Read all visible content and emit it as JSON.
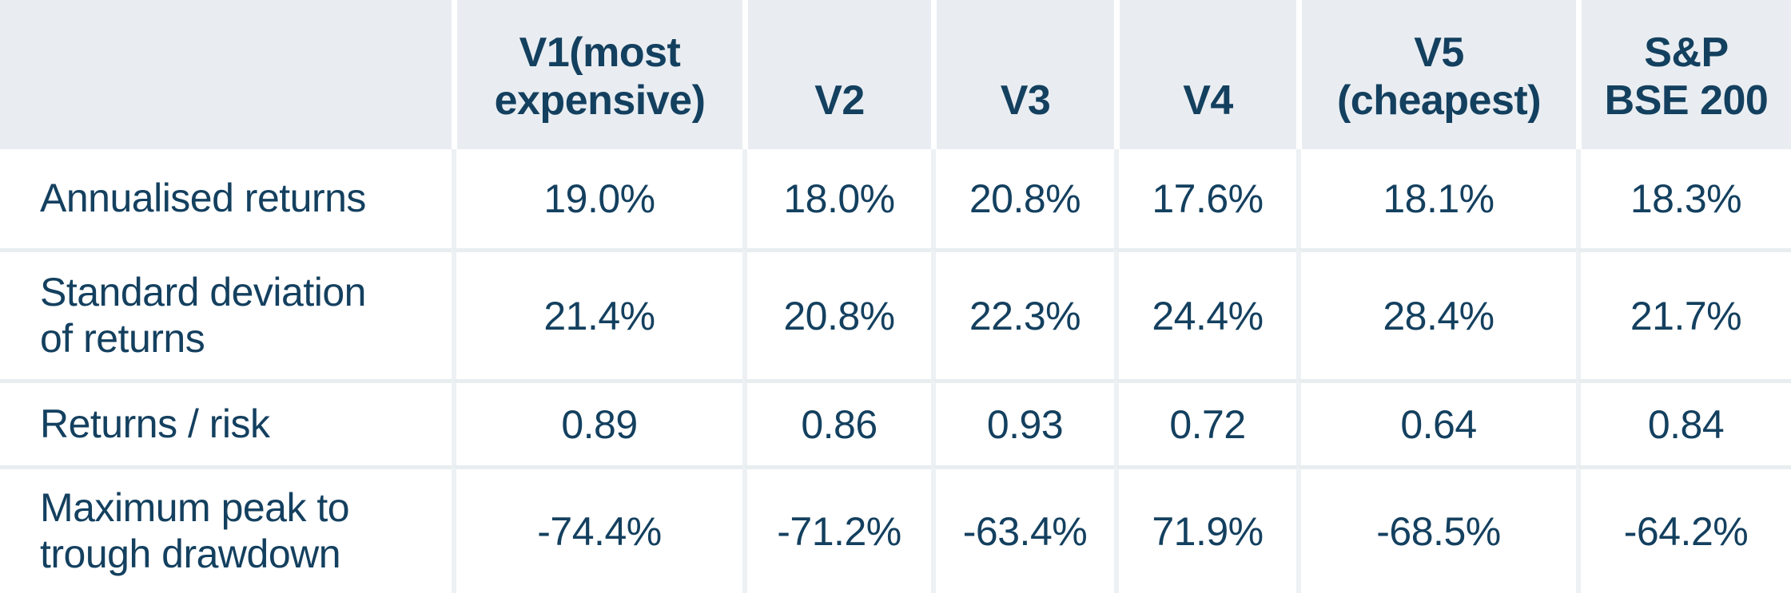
{
  "chart_data": {
    "type": "table",
    "title": "",
    "columns": [
      "",
      "V1(most expensive)",
      "V2",
      "V3",
      "V4",
      "V5 (cheapest)",
      "S&P BSE 200"
    ],
    "rows": [
      {
        "label": "Annualised returns",
        "values": [
          "19.0%",
          "18.0%",
          "20.8%",
          "17.6%",
          "18.1%",
          "18.3%"
        ]
      },
      {
        "label": "Standard deviation of returns",
        "values": [
          "21.4%",
          "20.8%",
          "22.3%",
          "24.4%",
          "28.4%",
          "21.7%"
        ]
      },
      {
        "label": "Returns / risk",
        "values": [
          "0.89",
          "0.86",
          "0.93",
          "0.72",
          "0.64",
          "0.84"
        ]
      },
      {
        "label": "Maximum peak to trough drawdown",
        "values": [
          "-74.4%",
          "-71.2%",
          "-63.4%",
          "71.9%",
          "-68.5%",
          "-64.2%"
        ]
      }
    ]
  },
  "display": {
    "headers": [
      "",
      "V1(most\nexpensive)",
      "V2",
      "V3",
      "V4",
      "V5\n(cheapest)",
      "S&P\nBSE 200"
    ],
    "row_labels": [
      "Annualised returns",
      "Standard deviation\nof returns",
      "Returns / risk",
      "Maximum peak to\ntrough drawdown"
    ]
  },
  "colors": {
    "text": "#14405f",
    "header_bg": "#e9edf1",
    "body_bg": "#ffffff",
    "row_divider": "#e8edf0",
    "col_divider": "#edf1f4",
    "header_divider": "#ffffff"
  }
}
